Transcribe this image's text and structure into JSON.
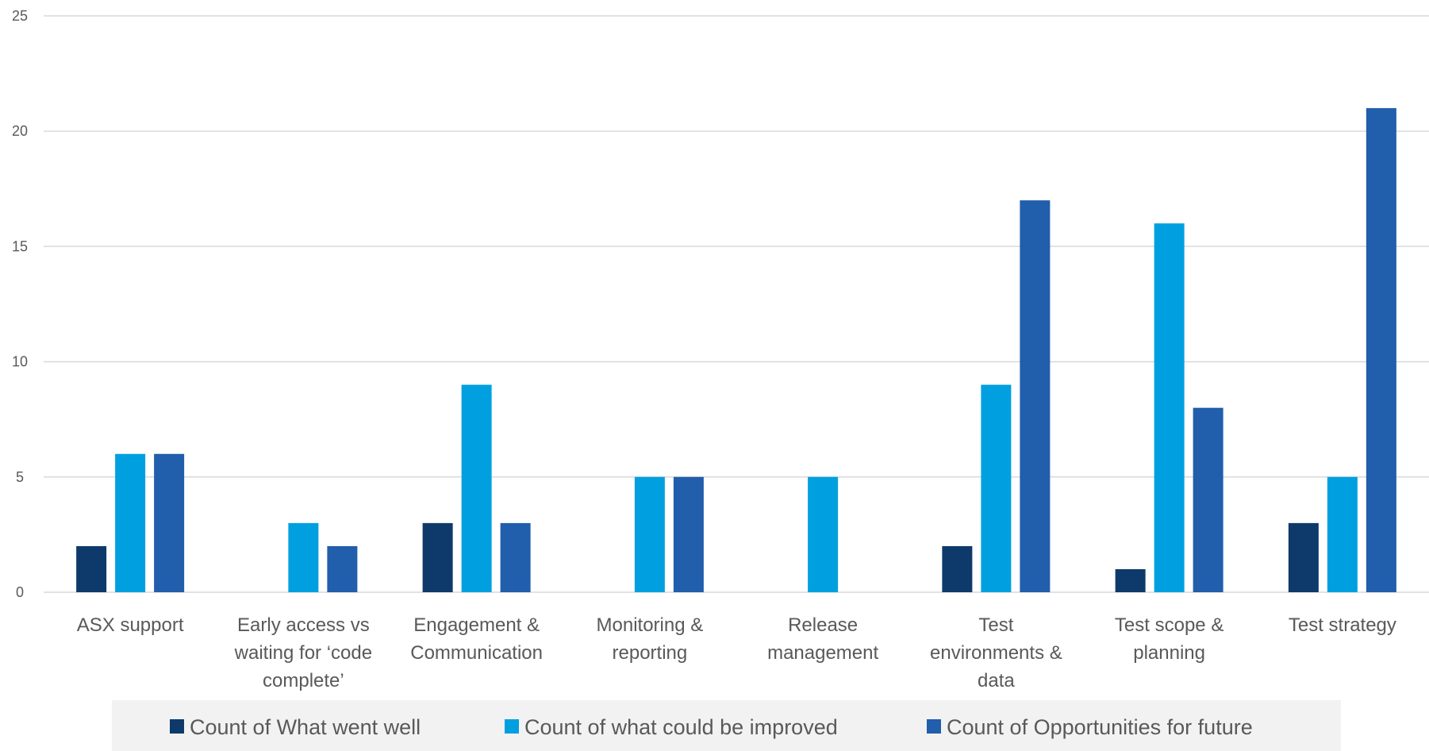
{
  "chart_data": {
    "type": "bar",
    "title": "",
    "xlabel": "",
    "ylabel": "",
    "ylim": [
      0,
      25
    ],
    "y_ticks": [
      "0",
      "5",
      "10",
      "15",
      "20",
      "25"
    ],
    "y_tick_values": [
      0,
      5,
      10,
      15,
      20,
      25
    ],
    "grid": true,
    "legend_position": "bottom",
    "categories": [
      [
        "ASX support"
      ],
      [
        "Early access vs",
        "waiting for ‘code",
        "complete’"
      ],
      [
        "Engagement &",
        "Communication"
      ],
      [
        "Monitoring &",
        "reporting"
      ],
      [
        "Release",
        "management"
      ],
      [
        "Test",
        "environments &",
        "data"
      ],
      [
        "Test scope &",
        "planning"
      ],
      [
        "Test strategy"
      ]
    ],
    "series": [
      {
        "name": "Count of What went well",
        "color": "#0e3a6b",
        "values": [
          2,
          null,
          3,
          null,
          null,
          2,
          1,
          3
        ]
      },
      {
        "name": "Count of what could be improved",
        "color": "#00a0e0",
        "values": [
          6,
          3,
          9,
          5,
          5,
          9,
          16,
          5
        ]
      },
      {
        "name": "Count of Opportunities for future",
        "color": "#215eac",
        "values": [
          6,
          2,
          3,
          5,
          null,
          17,
          8,
          21
        ]
      }
    ],
    "legend_background": "#f2f2f2",
    "grid_color": "#d9d9d9",
    "text_color": "#595959"
  }
}
